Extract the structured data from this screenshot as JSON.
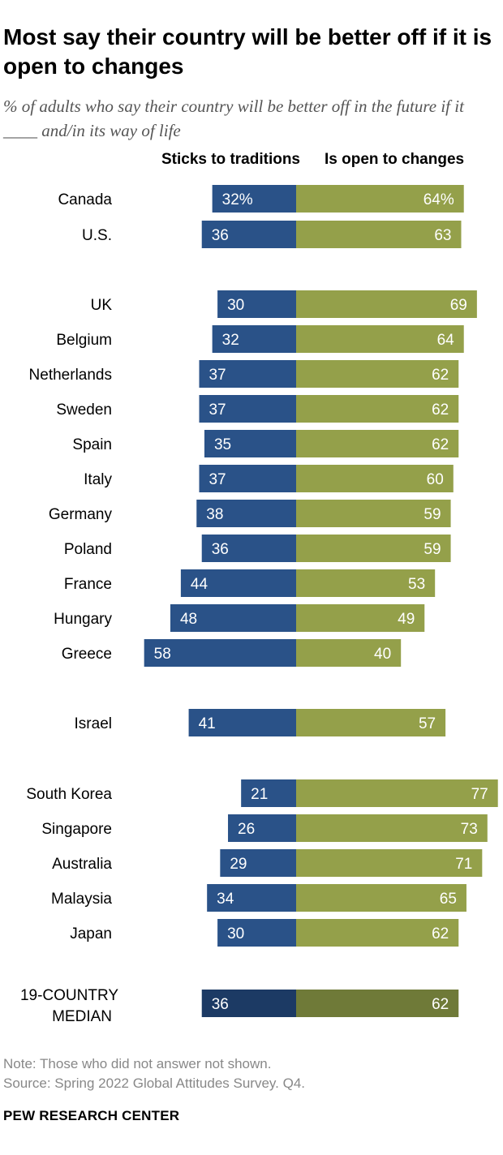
{
  "header": {
    "title": "Most say their country will be better off if it is open to changes",
    "subtitle": "% of adults who say their country will be better off in the future if it ____ and/in its way of life"
  },
  "chart_data": {
    "type": "bar",
    "orientation": "horizontal-diverging",
    "series": [
      {
        "name": "Sticks to traditions",
        "color": "#2a5288",
        "values": [
          32,
          36,
          30,
          32,
          37,
          37,
          35,
          37,
          38,
          36,
          44,
          48,
          58,
          41,
          21,
          26,
          29,
          34,
          30,
          36
        ]
      },
      {
        "name": "Is open to changes",
        "color": "#94a04a",
        "values": [
          64,
          63,
          69,
          64,
          62,
          62,
          62,
          60,
          59,
          59,
          53,
          49,
          40,
          57,
          77,
          73,
          71,
          65,
          62,
          62
        ]
      }
    ],
    "categories": [
      "Canada",
      "U.S.",
      "UK",
      "Belgium",
      "Netherlands",
      "Sweden",
      "Spain",
      "Italy",
      "Germany",
      "Poland",
      "France",
      "Hungary",
      "Greece",
      "Israel",
      "South Korea",
      "Singapore",
      "Australia",
      "Malaysia",
      "Japan",
      "19-COUNTRY MEDIAN"
    ],
    "labels_left": [
      "32%",
      "36",
      "30",
      "32",
      "37",
      "37",
      "35",
      "37",
      "38",
      "36",
      "44",
      "48",
      "58",
      "41",
      "21",
      "26",
      "29",
      "34",
      "30",
      "36"
    ],
    "labels_right": [
      "64%",
      "63",
      "69",
      "64",
      "62",
      "62",
      "62",
      "60",
      "59",
      "59",
      "53",
      "49",
      "40",
      "57",
      "77",
      "73",
      "71",
      "65",
      "62",
      "62"
    ],
    "median_colors": {
      "left": "#1c3a64",
      "right": "#6f7a38"
    }
  },
  "footer": {
    "note": "Note: Those who did not answer not shown.",
    "source": "Source: Spring 2022 Global Attitudes Survey. Q4.",
    "brand": "PEW RESEARCH CENTER"
  }
}
